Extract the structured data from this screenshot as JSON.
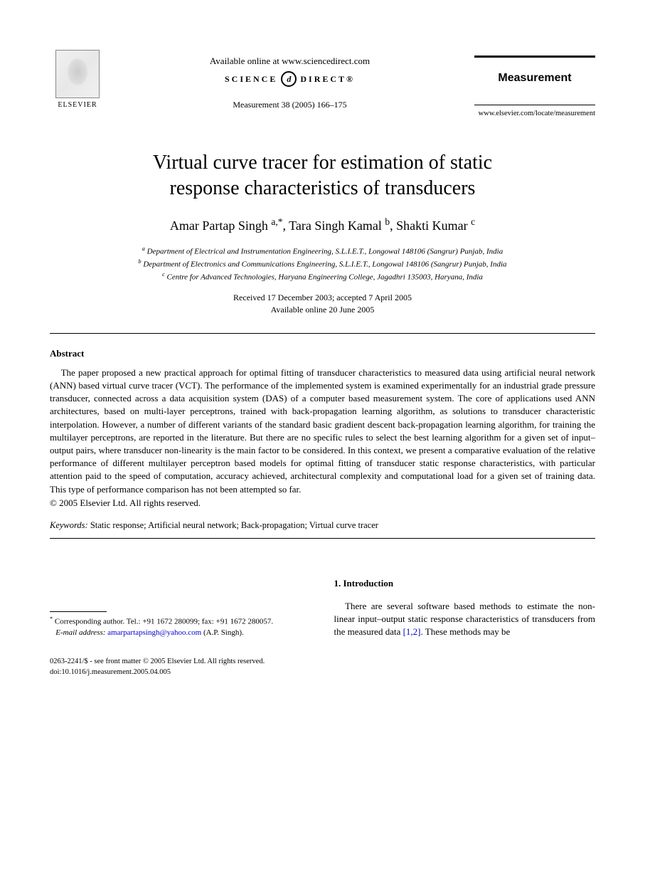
{
  "header": {
    "elsevier_label": "ELSEVIER",
    "available_online": "Available online at www.sciencedirect.com",
    "science_direct_left": "SCIENCE",
    "science_direct_right": "DIRECT®",
    "sd_icon_glyph": "d",
    "journal_reference": "Measurement 38 (2005) 166–175",
    "journal_name": "Measurement",
    "journal_url": "www.elsevier.com/locate/measurement"
  },
  "title": {
    "line1": "Virtual curve tracer for estimation of static",
    "line2": "response characteristics of transducers"
  },
  "authors": {
    "a1_name": "Amar Partap Singh ",
    "a1_aff": "a,",
    "a1_corr": "*",
    "sep1": ", ",
    "a2_name": "Tara Singh Kamal ",
    "a2_aff": "b",
    "sep2": ", ",
    "a3_name": "Shakti Kumar ",
    "a3_aff": "c"
  },
  "affiliations": {
    "a": "Department of Electrical and Instrumentation Engineering, S.L.I.E.T., Longowal 148106 (Sangrur) Punjab, India",
    "b": "Department of Electronics and Communications Engineering, S.L.I.E.T., Longowal 148106 (Sangrur) Punjab, India",
    "c": "Centre for Advanced Technologies, Haryana Engineering College, Jagadhri 135003, Haryana, India"
  },
  "dates": {
    "received_accepted": "Received 17 December 2003; accepted 7 April 2005",
    "online": "Available online 20 June 2005"
  },
  "abstract": {
    "heading": "Abstract",
    "body": "The paper proposed a new practical approach for optimal fitting of transducer characteristics to measured data using artificial neural network (ANN) based virtual curve tracer (VCT). The performance of the implemented system is examined experimentally for an industrial grade pressure transducer, connected across a data acquisition system (DAS) of a computer based measurement system. The core of applications used ANN architectures, based on multi-layer perceptrons, trained with back-propagation learning algorithm, as solutions to transducer characteristic interpolation. However, a number of different variants of the standard basic gradient descent back-propagation learning algorithm, for training the multilayer perceptrons, are reported in the literature. But there are no specific rules to select the best learning algorithm for a given set of input–output pairs, where transducer non-linearity is the main factor to be considered. In this context, we present a comparative evaluation of the relative performance of different multilayer perceptron based models for optimal fitting of transducer static response characteristics, with particular attention paid to the speed of computation, accuracy achieved, architectural complexity and computational load for a given set of training data. This type of performance comparison has not been attempted so far.",
    "copyright": "© 2005 Elsevier Ltd. All rights reserved."
  },
  "keywords": {
    "label": "Keywords:",
    "list": "Static response; Artificial neural network; Back-propagation; Virtual curve tracer"
  },
  "intro": {
    "heading": "1. Introduction",
    "text_before_ref": "There are several software based methods to estimate the non-linear input–output static response characteristics of transducers from the measured data ",
    "ref_text": "[1,2]",
    "text_after_ref": ". These methods may be"
  },
  "footnote": {
    "corr_label": "Corresponding author. Tel.: +91 1672 280099; fax: +91 1672 280057.",
    "email_label": "E-mail address:",
    "email": "amarpartapsingh@yahoo.com",
    "email_suffix": "(A.P. Singh)."
  },
  "footer": {
    "line1": "0263-2241/$ - see front matter © 2005 Elsevier Ltd. All rights reserved.",
    "line2": "doi:10.1016/j.measurement.2005.04.005"
  }
}
